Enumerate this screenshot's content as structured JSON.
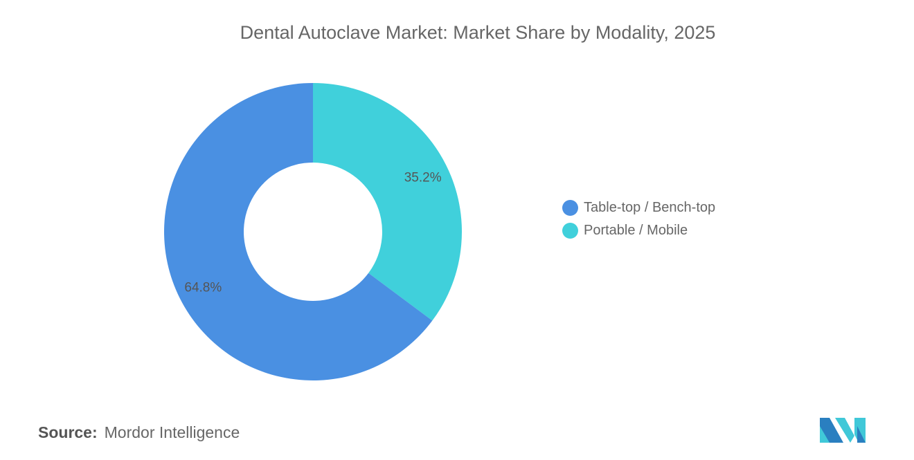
{
  "chart_data": {
    "type": "pie",
    "donut": true,
    "title": "Dental Autoclave Market: Market Share by Modality, 2025",
    "categories": [
      "Table-top / Bench-top",
      "Portable / Mobile"
    ],
    "values": [
      64.8,
      35.2
    ],
    "labels": [
      "64.8%",
      "35.2%"
    ],
    "colors": [
      "#4A90E2",
      "#40D0DB"
    ],
    "legend_position": "right"
  },
  "source": {
    "label": "Source:",
    "value": "Mordor Intelligence"
  },
  "logo": {
    "text": "Mordor Intelligence",
    "colors": [
      "#2A7FC0",
      "#40C8D8"
    ]
  }
}
